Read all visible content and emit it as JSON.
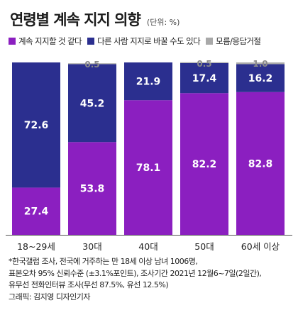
{
  "title": "연령별 계속 지지 의향",
  "unit": "(단위: %)",
  "legend": [
    {
      "label": "계속 지지할 것 같다",
      "color": "#8b1fc0"
    },
    {
      "label": "다른 사람 지지로 바꿀 수도 있다",
      "color": "#2b2f8f"
    },
    {
      "label": "모름/응답거절",
      "color": "#a9a9a9"
    }
  ],
  "chart_data": {
    "type": "bar",
    "stacked": true,
    "categories": [
      "18~29세",
      "30대",
      "40대",
      "50대",
      "60세 이상"
    ],
    "series": [
      {
        "name": "계속 지지할 것 같다",
        "color": "#8b1fc0",
        "values": [
          27.4,
          53.8,
          78.1,
          82.2,
          82.8
        ],
        "labels": [
          "27.4",
          "53.8",
          "78.1",
          "82.2",
          "82.8"
        ]
      },
      {
        "name": "다른 사람 지지로 바꿀 수도 있다",
        "color": "#2b2f8f",
        "values": [
          72.6,
          45.2,
          21.9,
          17.4,
          16.2
        ],
        "labels": [
          "72.6",
          "45.2",
          "21.9",
          "17.4",
          "16.2"
        ]
      },
      {
        "name": "모름/응답거절",
        "color": "#a9a9a9",
        "values": [
          0,
          0.5,
          0,
          0.5,
          1.0
        ],
        "labels": [
          "",
          "0.5",
          "",
          "0.5",
          "1.0"
        ]
      }
    ],
    "ylim": [
      0,
      100
    ]
  },
  "notes": [
    "*한국갤럽 조사, 전국에 거주하는 만 18세 이상 남녀 1006명,",
    "표본오차 95% 신뢰수준 (±3.1%포인트), 조사기간 2021년 12월6~7일(2일간),",
    "유무선 전화인터뷰 조사(무선 87.5%, 유선 12.5%)",
    "그래픽: 김지영 디자인기자"
  ]
}
